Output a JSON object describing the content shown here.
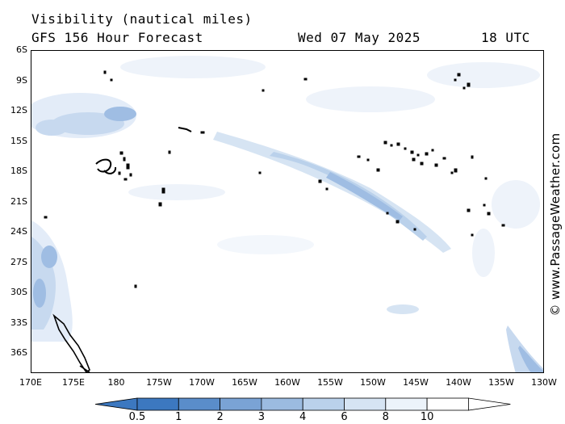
{
  "header": {
    "title": "Visibility (nautical miles)",
    "model": "GFS 156 Hour Forecast",
    "date": "Wed 07 May 2025",
    "time": "18 UTC"
  },
  "credit": "© www.PassageWeather.com",
  "axes": {
    "lat_ticks": [
      "6S",
      "9S",
      "12S",
      "15S",
      "18S",
      "21S",
      "24S",
      "27S",
      "30S",
      "33S",
      "36S"
    ],
    "lon_ticks": [
      "170E",
      "175E",
      "180",
      "175W",
      "170W",
      "165W",
      "160W",
      "155W",
      "150W",
      "145W",
      "140W",
      "135W",
      "130W"
    ]
  },
  "legend": {
    "labels": [
      "0.5",
      "1",
      "2",
      "3",
      "4",
      "6",
      "8",
      "10"
    ],
    "colors": [
      "#3c78c0",
      "#5a8dca",
      "#7aa3d5",
      "#9bbbe0",
      "#bad1eb",
      "#d6e4f3",
      "#ecf3fa",
      "#ffffff"
    ]
  },
  "colors": {
    "light": "#e3ecf8",
    "medium": "#c7d9ef",
    "dark": "#9fbde3",
    "darker": "#7aa3d5",
    "land": "#000000"
  }
}
